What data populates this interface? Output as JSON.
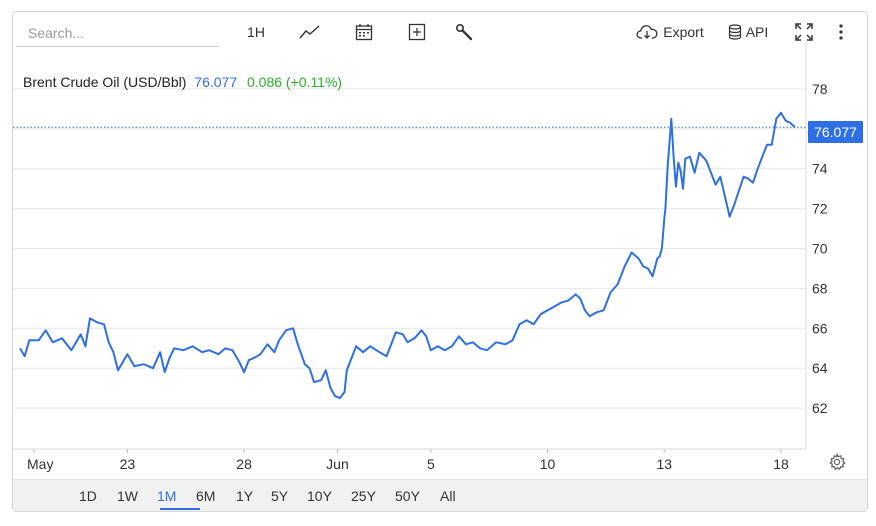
{
  "toolbar": {
    "search_placeholder": "Search...",
    "interval_label": "1H",
    "export_label": "Export",
    "api_label": "API",
    "icons": [
      "line-chart-icon",
      "calendar-icon",
      "plus-box-icon",
      "wrench-icon",
      "cloud-download-icon",
      "database-icon",
      "fullscreen-icon",
      "more-vert-icon"
    ]
  },
  "header": {
    "name": "Brent Crude Oil (USD/Bbl)",
    "last": "76.077",
    "change": "0.086 (+0.11%)"
  },
  "price_tag": "76.077",
  "ranges": {
    "items": [
      "1D",
      "1W",
      "1M",
      "6M",
      "1Y",
      "5Y",
      "10Y",
      "25Y",
      "50Y",
      "All"
    ],
    "active": "1M"
  },
  "colors": {
    "line": "#2f6fe6",
    "positive": "#28b228",
    "accent": "#2f6fe6",
    "grid": "#e6e6e6"
  },
  "chart_data": {
    "type": "line",
    "title": "Brent Crude Oil (USD/Bbl)",
    "xlabel": "",
    "ylabel": "",
    "ylim": [
      60,
      79
    ],
    "yticks": [
      62,
      64,
      66,
      68,
      70,
      72,
      74,
      76,
      78
    ],
    "xticks": [
      {
        "label": "May",
        "day": 0
      },
      {
        "label": "23",
        "day": 4
      },
      {
        "label": "28",
        "day": 9
      },
      {
        "label": "Jun",
        "day": 13
      },
      {
        "label": "5",
        "day": 17
      },
      {
        "label": "10",
        "day": 22
      },
      {
        "label": "13",
        "day": 27
      },
      {
        "label": "18",
        "day": 32
      }
    ],
    "x_start_day": -0.6,
    "x_end_day": 32.6,
    "grid": true,
    "last_value": 76.077,
    "series": [
      {
        "values": [
          [
            -0.6,
            65.0
          ],
          [
            -0.4,
            64.6
          ],
          [
            -0.2,
            65.4
          ],
          [
            0.2,
            65.4
          ],
          [
            0.5,
            65.9
          ],
          [
            0.8,
            65.3
          ],
          [
            1.2,
            65.5
          ],
          [
            1.6,
            64.9
          ],
          [
            2.0,
            65.7
          ],
          [
            2.2,
            65.1
          ],
          [
            2.4,
            66.5
          ],
          [
            2.7,
            66.3
          ],
          [
            3.0,
            66.2
          ],
          [
            3.2,
            65.3
          ],
          [
            3.4,
            64.8
          ],
          [
            3.6,
            63.9
          ],
          [
            3.8,
            64.3
          ],
          [
            4.0,
            64.7
          ],
          [
            4.3,
            64.1
          ],
          [
            4.7,
            64.2
          ],
          [
            5.1,
            64.0
          ],
          [
            5.4,
            64.8
          ],
          [
            5.6,
            63.8
          ],
          [
            5.8,
            64.5
          ],
          [
            6.0,
            65.0
          ],
          [
            6.4,
            64.9
          ],
          [
            6.8,
            65.1
          ],
          [
            7.2,
            64.8
          ],
          [
            7.5,
            64.9
          ],
          [
            7.9,
            64.7
          ],
          [
            8.2,
            65.0
          ],
          [
            8.5,
            64.9
          ],
          [
            8.8,
            64.3
          ],
          [
            9.0,
            63.8
          ],
          [
            9.2,
            64.4
          ],
          [
            9.4,
            64.5
          ],
          [
            9.7,
            64.7
          ],
          [
            10.0,
            65.2
          ],
          [
            10.3,
            64.8
          ],
          [
            10.5,
            65.4
          ],
          [
            10.8,
            65.9
          ],
          [
            11.1,
            66.0
          ],
          [
            11.3,
            65.2
          ],
          [
            11.6,
            64.2
          ],
          [
            11.8,
            64.0
          ],
          [
            12.0,
            63.3
          ],
          [
            12.3,
            63.4
          ],
          [
            12.5,
            63.9
          ],
          [
            12.7,
            63.0
          ],
          [
            12.9,
            62.6
          ],
          [
            13.1,
            62.5
          ],
          [
            13.3,
            62.8
          ],
          [
            13.4,
            63.9
          ],
          [
            13.6,
            64.5
          ],
          [
            13.8,
            65.1
          ],
          [
            14.1,
            64.8
          ],
          [
            14.4,
            65.1
          ],
          [
            14.8,
            64.8
          ],
          [
            15.1,
            64.6
          ],
          [
            15.3,
            65.2
          ],
          [
            15.5,
            65.8
          ],
          [
            15.8,
            65.7
          ],
          [
            16.0,
            65.3
          ],
          [
            16.3,
            65.5
          ],
          [
            16.6,
            65.9
          ],
          [
            16.8,
            65.6
          ],
          [
            17.0,
            64.9
          ],
          [
            17.3,
            65.1
          ],
          [
            17.6,
            64.9
          ],
          [
            17.9,
            65.1
          ],
          [
            18.2,
            65.6
          ],
          [
            18.5,
            65.2
          ],
          [
            18.8,
            65.3
          ],
          [
            19.1,
            65.0
          ],
          [
            19.4,
            64.9
          ],
          [
            19.8,
            65.3
          ],
          [
            20.2,
            65.2
          ],
          [
            20.5,
            65.4
          ],
          [
            20.8,
            66.2
          ],
          [
            21.1,
            66.4
          ],
          [
            21.4,
            66.2
          ],
          [
            21.7,
            66.7
          ],
          [
            22.0,
            66.9
          ],
          [
            22.3,
            67.1
          ],
          [
            22.6,
            67.3
          ],
          [
            22.9,
            67.4
          ],
          [
            23.2,
            67.7
          ],
          [
            23.4,
            67.5
          ],
          [
            23.6,
            66.9
          ],
          [
            23.8,
            66.6
          ],
          [
            24.1,
            66.8
          ],
          [
            24.4,
            66.9
          ],
          [
            24.7,
            67.8
          ],
          [
            25.0,
            68.2
          ],
          [
            25.3,
            69.1
          ],
          [
            25.6,
            69.8
          ],
          [
            25.9,
            69.5
          ],
          [
            26.1,
            69.1
          ],
          [
            26.3,
            69.0
          ],
          [
            26.5,
            68.6
          ],
          [
            26.7,
            69.5
          ],
          [
            26.8,
            69.6
          ],
          [
            26.9,
            70.0
          ],
          [
            27.0,
            71.5
          ],
          [
            27.05,
            72.0
          ],
          [
            27.15,
            74.2
          ],
          [
            27.3,
            76.5
          ],
          [
            27.4,
            74.6
          ],
          [
            27.5,
            73.1
          ],
          [
            27.6,
            74.3
          ],
          [
            27.7,
            73.9
          ],
          [
            27.8,
            73.0
          ],
          [
            27.9,
            74.5
          ],
          [
            28.1,
            74.6
          ],
          [
            28.3,
            73.8
          ],
          [
            28.5,
            74.8
          ],
          [
            28.8,
            74.4
          ],
          [
            29.0,
            73.8
          ],
          [
            29.2,
            73.2
          ],
          [
            29.4,
            73.6
          ],
          [
            29.6,
            72.6
          ],
          [
            29.8,
            71.6
          ],
          [
            30.0,
            72.2
          ],
          [
            30.2,
            72.9
          ],
          [
            30.4,
            73.6
          ],
          [
            30.6,
            73.5
          ],
          [
            30.8,
            73.3
          ],
          [
            31.0,
            74.0
          ],
          [
            31.2,
            74.6
          ],
          [
            31.4,
            75.2
          ],
          [
            31.6,
            75.2
          ],
          [
            31.8,
            76.5
          ],
          [
            32.0,
            76.8
          ],
          [
            32.2,
            76.4
          ],
          [
            32.4,
            76.3
          ],
          [
            32.6,
            76.077
          ]
        ]
      }
    ]
  }
}
